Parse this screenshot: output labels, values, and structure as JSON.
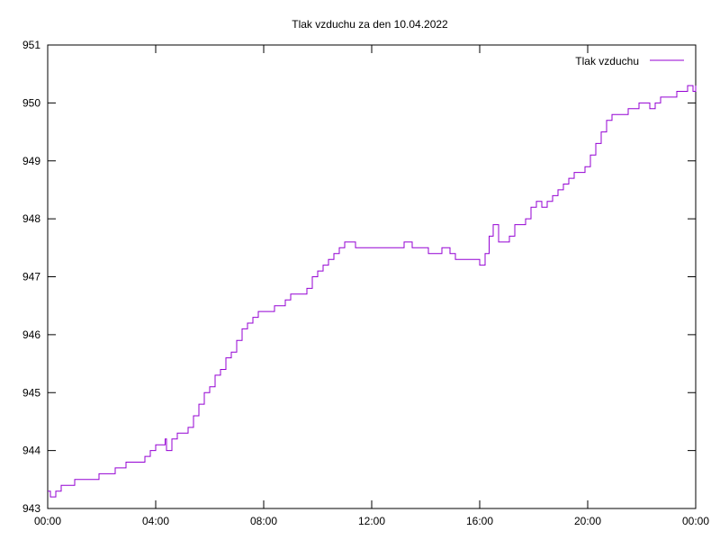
{
  "chart_data": {
    "type": "line",
    "title": "Tlak vzduchu za den 10.04.2022",
    "xlabel": "",
    "ylabel": "",
    "ylim": [
      943,
      951
    ],
    "xlim_hours": [
      0,
      24
    ],
    "x_tick_labels": [
      "00:00",
      "04:00",
      "08:00",
      "12:00",
      "16:00",
      "20:00",
      "00:00"
    ],
    "y_tick_labels": [
      "943",
      "944",
      "945",
      "946",
      "947",
      "948",
      "949",
      "950",
      "951"
    ],
    "legend_position": "top-right",
    "grid": false,
    "series": [
      {
        "name": "Tlak vzduchu",
        "color": "#9400d3",
        "x_hours": [
          0.0,
          0.1,
          0.3,
          0.5,
          0.8,
          1.0,
          1.3,
          1.5,
          1.7,
          1.9,
          2.0,
          2.2,
          2.5,
          2.7,
          2.9,
          3.2,
          3.4,
          3.6,
          3.8,
          4.0,
          4.2,
          4.35,
          4.4,
          4.6,
          4.8,
          5.0,
          5.2,
          5.4,
          5.6,
          5.8,
          6.0,
          6.2,
          6.4,
          6.6,
          6.8,
          7.0,
          7.2,
          7.4,
          7.6,
          7.8,
          8.0,
          8.2,
          8.4,
          8.6,
          8.8,
          9.0,
          9.2,
          9.4,
          9.6,
          9.8,
          10.0,
          10.2,
          10.4,
          10.6,
          10.8,
          11.0,
          11.2,
          11.4,
          11.6,
          11.8,
          12.0,
          12.3,
          12.6,
          12.9,
          13.2,
          13.5,
          13.8,
          14.1,
          14.4,
          14.6,
          14.9,
          15.1,
          15.3,
          15.6,
          15.9,
          16.0,
          16.2,
          16.35,
          16.5,
          16.7,
          16.9,
          17.1,
          17.3,
          17.5,
          17.7,
          17.9,
          18.1,
          18.3,
          18.5,
          18.7,
          18.9,
          19.1,
          19.3,
          19.5,
          19.7,
          19.9,
          20.1,
          20.3,
          20.5,
          20.7,
          20.9,
          21.1,
          21.3,
          21.5,
          21.7,
          21.9,
          22.1,
          22.3,
          22.5,
          22.7,
          22.9,
          23.1,
          23.3,
          23.5,
          23.7,
          23.9,
          24.0
        ],
        "values": [
          943.3,
          943.2,
          943.3,
          943.4,
          943.4,
          943.5,
          943.5,
          943.5,
          943.5,
          943.6,
          943.6,
          943.6,
          943.7,
          943.7,
          943.8,
          943.8,
          943.8,
          943.9,
          944.0,
          944.1,
          944.1,
          944.2,
          944.0,
          944.2,
          944.3,
          944.3,
          944.4,
          944.6,
          944.8,
          945.0,
          945.1,
          945.3,
          945.4,
          945.6,
          945.7,
          945.9,
          946.1,
          946.2,
          946.3,
          946.4,
          946.4,
          946.4,
          946.5,
          946.5,
          946.6,
          946.7,
          946.7,
          946.7,
          946.8,
          947.0,
          947.1,
          947.2,
          947.3,
          947.4,
          947.5,
          947.6,
          947.6,
          947.5,
          947.5,
          947.5,
          947.5,
          947.5,
          947.5,
          947.5,
          947.6,
          947.5,
          947.5,
          947.4,
          947.4,
          947.5,
          947.4,
          947.3,
          947.3,
          947.3,
          947.3,
          947.2,
          947.4,
          947.7,
          947.9,
          947.6,
          947.6,
          947.7,
          947.9,
          947.9,
          948.0,
          948.2,
          948.3,
          948.2,
          948.3,
          948.4,
          948.5,
          948.6,
          948.7,
          948.8,
          948.8,
          948.9,
          949.1,
          949.3,
          949.5,
          949.7,
          949.8,
          949.8,
          949.8,
          949.9,
          949.9,
          950.0,
          950.0,
          949.9,
          950.0,
          950.1,
          950.1,
          950.1,
          950.2,
          950.2,
          950.3,
          950.2,
          950.3
        ]
      }
    ]
  }
}
